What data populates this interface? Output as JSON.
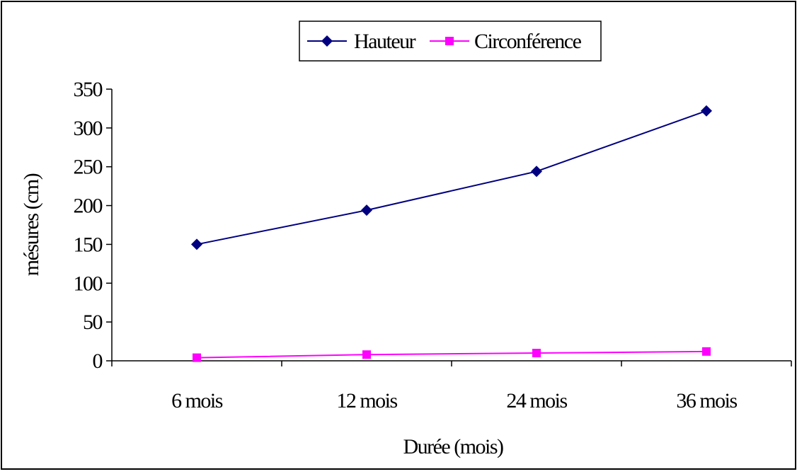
{
  "chart_data": {
    "type": "line",
    "categories": [
      "6 mois",
      "12 mois",
      "24 mois",
      "36 mois"
    ],
    "series": [
      {
        "name": "Hauteur",
        "values": [
          150,
          194,
          244,
          322
        ],
        "color": "#000080",
        "marker": "diamond"
      },
      {
        "name": "Circonférence",
        "values": [
          4,
          8,
          10,
          12
        ],
        "color": "#ff00ff",
        "marker": "square"
      }
    ],
    "title": "",
    "xlabel": "Durée (mois)",
    "ylabel": "mésures (cm)",
    "ylim": [
      0,
      350
    ],
    "yticks": [
      "0",
      "50",
      "100",
      "150",
      "200",
      "250",
      "300",
      "350"
    ],
    "grid": false,
    "legend_position": "top-center"
  }
}
